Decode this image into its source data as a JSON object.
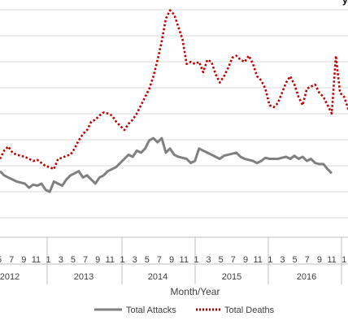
{
  "chart_data": {
    "type": "line",
    "title_fragment": "y",
    "xlabel": "Month/Year",
    "tick_month_labels": [
      "5",
      "7",
      "9",
      "11",
      "1",
      "3",
      "5",
      "7",
      "9",
      "11",
      "1",
      "3",
      "5",
      "7",
      "9",
      "11",
      "1",
      "3",
      "5",
      "7",
      "9",
      "11",
      "1",
      "3",
      "5",
      "7",
      "9",
      "11",
      "1"
    ],
    "year_labels": [
      "2012",
      "2013",
      "2014",
      "2015",
      "2016"
    ],
    "grid": true,
    "legend": "bottom",
    "series": [
      {
        "name": "Total Attacks",
        "color": "#808080",
        "style": "solid",
        "values": [
          320,
          300,
          290,
          280,
          270,
          265,
          260,
          240,
          255,
          250,
          260,
          230,
          220,
          270,
          260,
          250,
          280,
          300,
          310,
          320,
          290,
          300,
          280,
          260,
          290,
          300,
          320,
          330,
          340,
          360,
          380,
          400,
          390,
          420,
          410,
          430,
          470,
          480,
          460,
          480,
          410,
          430,
          400,
          390,
          385,
          380,
          360,
          370,
          430,
          420,
          410,
          400,
          390,
          380,
          395,
          400,
          405,
          410,
          390,
          380,
          375,
          370,
          360,
          370,
          385,
          380,
          380,
          380,
          385,
          390,
          380,
          395,
          380,
          390,
          370,
          380,
          360,
          355,
          355,
          330,
          310
        ]
      },
      {
        "name": "Total Deaths",
        "color": "#C00000",
        "style": "dotted",
        "values": [
          380,
          420,
          440,
          410,
          400,
          395,
          390,
          380,
          370,
          375,
          360,
          345,
          340,
          330,
          380,
          385,
          395,
          400,
          430,
          470,
          500,
          520,
          560,
          570,
          590,
          605,
          600,
          590,
          560,
          540,
          520,
          550,
          570,
          600,
          640,
          680,
          720,
          780,
          860,
          950,
          1060,
          1100,
          1080,
          1020,
          960,
          840,
          850,
          840,
          850,
          800,
          860,
          850,
          790,
          750,
          780,
          820,
          870,
          880,
          860,
          850,
          880,
          840,
          780,
          760,
          720,
          640,
          630,
          650,
          700,
          750,
          780,
          740,
          680,
          640,
          720,
          730,
          740,
          700,
          680,
          640,
          600,
          880,
          700,
          680,
          620
        ]
      }
    ]
  }
}
